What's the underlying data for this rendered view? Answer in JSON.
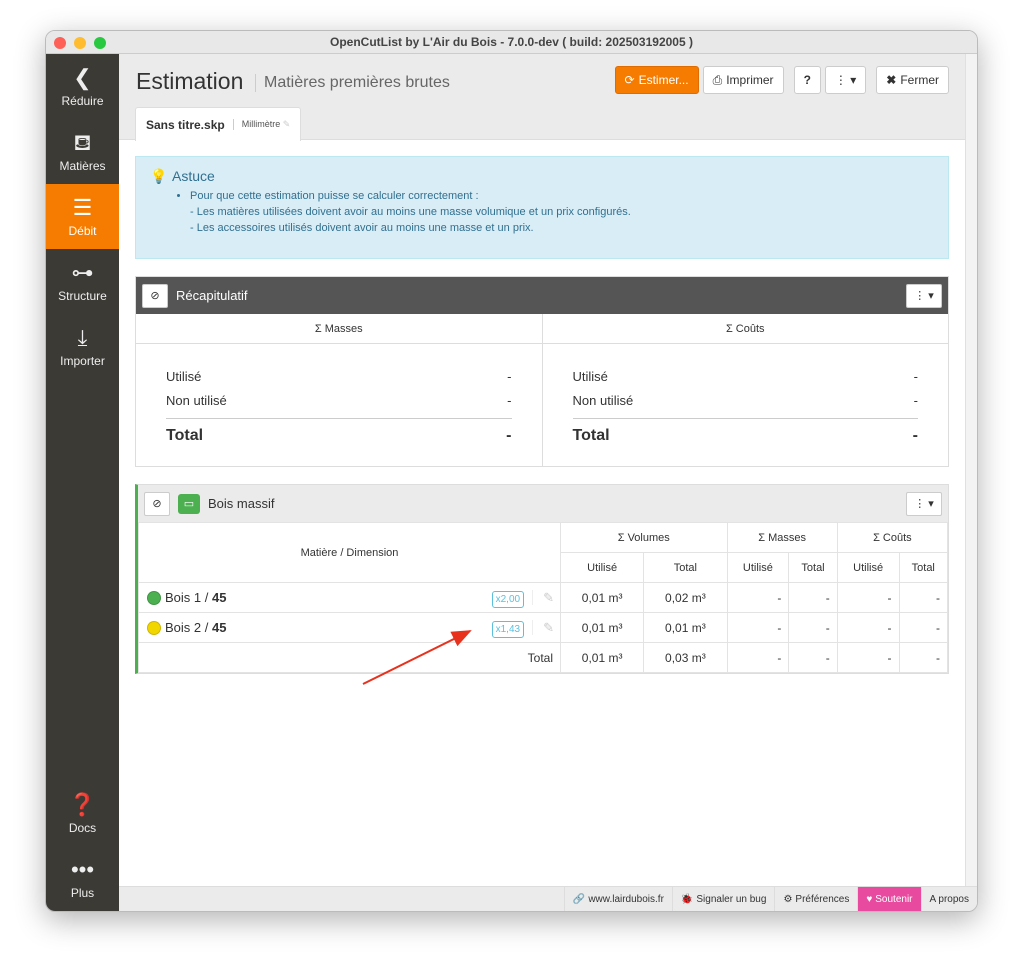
{
  "window": {
    "title": "OpenCutList by L'Air du Bois - 7.0.0-dev ( build: 202503192005 )"
  },
  "sidebar": {
    "items": [
      {
        "label": "Réduire",
        "icon": "chevron-left-icon"
      },
      {
        "label": "Matières",
        "icon": "paint-bucket-icon"
      },
      {
        "label": "Débit",
        "icon": "list-icon",
        "active": true
      },
      {
        "label": "Structure",
        "icon": "tree-icon"
      },
      {
        "label": "Importer",
        "icon": "import-icon"
      }
    ],
    "bottom": [
      {
        "label": "Docs",
        "icon": "question-icon"
      },
      {
        "label": "Plus",
        "icon": "more-icon"
      }
    ]
  },
  "header": {
    "title": "Estimation",
    "subtitle": "Matières premières brutes",
    "buttons": {
      "estimate": "Estimer...",
      "print": "Imprimer",
      "help": "?",
      "close": "Fermer"
    },
    "tab": {
      "file": "Sans titre.skp",
      "unit": "Millimètre"
    }
  },
  "tip": {
    "title": "Astuce",
    "line1": "Pour que cette estimation puisse se calculer correctement :",
    "line2": "- Les matières utilisées doivent avoir au moins une masse volumique et un prix configurés.",
    "line3": "- Les accessoires utilisés doivent avoir au moins une masse et un prix."
  },
  "summary": {
    "title": "Récapitulatif",
    "masses": {
      "header": "Σ Masses",
      "used_label": "Utilisé",
      "used": "-",
      "unused_label": "Non utilisé",
      "unused": "-",
      "total_label": "Total",
      "total": "-"
    },
    "costs": {
      "header": "Σ Coûts",
      "used_label": "Utilisé",
      "used": "-",
      "unused_label": "Non utilisé",
      "unused": "-",
      "total_label": "Total",
      "total": "-"
    }
  },
  "solid_wood": {
    "title": "Bois massif",
    "accent": "#4caf50",
    "headers": {
      "material": "Matière / Dimension",
      "volumes": "Σ Volumes",
      "masses": "Σ Masses",
      "costs": "Σ Coûts",
      "used": "Utilisé",
      "total": "Total"
    },
    "rows": [
      {
        "name": "Bois 1",
        "dim": "45",
        "color": "#4caf50",
        "factor": "x2,00",
        "vol_used": "0,01 m³",
        "vol_total": "0,02 m³",
        "mass_used": "-",
        "mass_total": "-",
        "cost_used": "-",
        "cost_total": "-"
      },
      {
        "name": "Bois 2",
        "dim": "45",
        "color": "#f2d600",
        "factor": "x1,43",
        "vol_used": "0,01 m³",
        "vol_total": "0,01 m³",
        "mass_used": "-",
        "mass_total": "-",
        "cost_used": "-",
        "cost_total": "-"
      }
    ],
    "total": {
      "label": "Total",
      "vol_used": "0,01 m³",
      "vol_total": "0,03 m³",
      "mass_used": "-",
      "mass_total": "-",
      "cost_used": "-",
      "cost_total": "-"
    }
  },
  "footer": {
    "website": "www.lairdubois.fr",
    "bug": "Signaler un bug",
    "prefs": "Préférences",
    "support": "Soutenir",
    "about": "A propos"
  }
}
